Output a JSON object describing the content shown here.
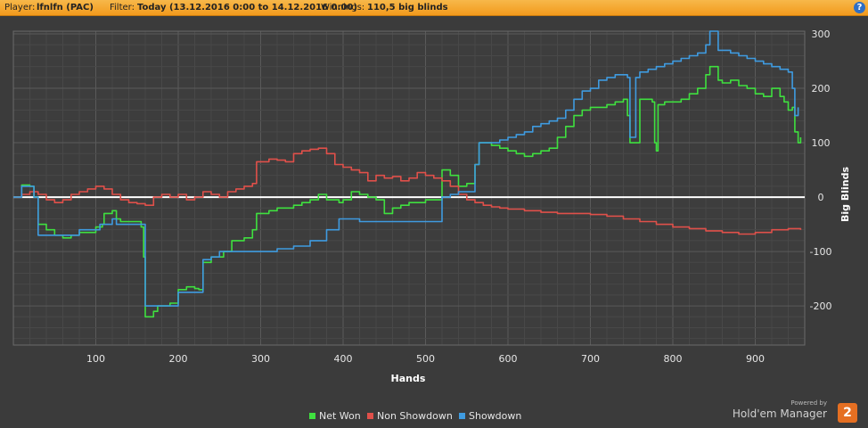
{
  "header": {
    "player_label": "Player:",
    "player_value": "lfnlfn (PAC)",
    "filter_label": "Filter:",
    "filter_value": "Today (13.12.2016 0:00 to 14.12.2016 0:00)",
    "winnings_label": "Winnings:",
    "winnings_value": "110,5 big blinds",
    "help_icon": "?"
  },
  "chart_data": {
    "type": "line",
    "xlabel": "Hands",
    "ylabel": "Big Blinds",
    "xlim": [
      0,
      960
    ],
    "ylim": [
      -272,
      305
    ],
    "xticks": [
      100,
      200,
      300,
      400,
      500,
      600,
      700,
      800,
      900
    ],
    "yticks": [
      -200,
      -100,
      0,
      100,
      200,
      300
    ],
    "grid": true,
    "legend_position": "bottom",
    "zero_line": true,
    "series": [
      {
        "name": "Net Won",
        "color": "#3fe03f",
        "points": [
          [
            0,
            0
          ],
          [
            8,
            0
          ],
          [
            10,
            22
          ],
          [
            20,
            20
          ],
          [
            25,
            0
          ],
          [
            30,
            -50
          ],
          [
            40,
            -60
          ],
          [
            50,
            -70
          ],
          [
            60,
            -75
          ],
          [
            70,
            -70
          ],
          [
            80,
            -65
          ],
          [
            90,
            -65
          ],
          [
            100,
            -55
          ],
          [
            108,
            -50
          ],
          [
            110,
            -30
          ],
          [
            120,
            -25
          ],
          [
            125,
            -40
          ],
          [
            130,
            -45
          ],
          [
            155,
            -55
          ],
          [
            158,
            -110
          ],
          [
            160,
            -220
          ],
          [
            170,
            -210
          ],
          [
            175,
            -200
          ],
          [
            190,
            -195
          ],
          [
            200,
            -170
          ],
          [
            210,
            -165
          ],
          [
            220,
            -168
          ],
          [
            225,
            -170
          ],
          [
            230,
            -120
          ],
          [
            240,
            -110
          ],
          [
            255,
            -100
          ],
          [
            265,
            -80
          ],
          [
            280,
            -75
          ],
          [
            290,
            -60
          ],
          [
            295,
            -30
          ],
          [
            310,
            -25
          ],
          [
            320,
            -20
          ],
          [
            340,
            -15
          ],
          [
            350,
            -10
          ],
          [
            360,
            -5
          ],
          [
            370,
            5
          ],
          [
            380,
            -5
          ],
          [
            395,
            -10
          ],
          [
            400,
            -5
          ],
          [
            410,
            10
          ],
          [
            420,
            5
          ],
          [
            430,
            0
          ],
          [
            440,
            -5
          ],
          [
            450,
            -30
          ],
          [
            460,
            -20
          ],
          [
            470,
            -15
          ],
          [
            480,
            -10
          ],
          [
            490,
            -10
          ],
          [
            500,
            -5
          ],
          [
            510,
            -5
          ],
          [
            520,
            50
          ],
          [
            530,
            40
          ],
          [
            540,
            20
          ],
          [
            550,
            25
          ],
          [
            560,
            60
          ],
          [
            565,
            100
          ],
          [
            580,
            95
          ],
          [
            590,
            90
          ],
          [
            600,
            85
          ],
          [
            610,
            80
          ],
          [
            620,
            75
          ],
          [
            630,
            80
          ],
          [
            640,
            85
          ],
          [
            650,
            90
          ],
          [
            660,
            110
          ],
          [
            670,
            130
          ],
          [
            680,
            150
          ],
          [
            690,
            160
          ],
          [
            700,
            165
          ],
          [
            720,
            170
          ],
          [
            730,
            175
          ],
          [
            740,
            180
          ],
          [
            745,
            150
          ],
          [
            748,
            100
          ],
          [
            760,
            180
          ],
          [
            770,
            180
          ],
          [
            775,
            175
          ],
          [
            778,
            100
          ],
          [
            780,
            85
          ],
          [
            782,
            170
          ],
          [
            790,
            175
          ],
          [
            800,
            175
          ],
          [
            810,
            180
          ],
          [
            820,
            190
          ],
          [
            830,
            200
          ],
          [
            840,
            225
          ],
          [
            845,
            240
          ],
          [
            855,
            215
          ],
          [
            860,
            210
          ],
          [
            870,
            215
          ],
          [
            880,
            205
          ],
          [
            890,
            200
          ],
          [
            900,
            190
          ],
          [
            910,
            185
          ],
          [
            920,
            200
          ],
          [
            930,
            185
          ],
          [
            935,
            175
          ],
          [
            940,
            160
          ],
          [
            945,
            165
          ],
          [
            948,
            120
          ],
          [
            952,
            100
          ],
          [
            955,
            110
          ]
        ]
      },
      {
        "name": "Non Showdown",
        "color": "#e0504a",
        "points": [
          [
            0,
            0
          ],
          [
            10,
            5
          ],
          [
            20,
            10
          ],
          [
            30,
            5
          ],
          [
            40,
            -5
          ],
          [
            50,
            -10
          ],
          [
            60,
            -5
          ],
          [
            70,
            5
          ],
          [
            80,
            10
          ],
          [
            90,
            15
          ],
          [
            100,
            20
          ],
          [
            110,
            15
          ],
          [
            120,
            5
          ],
          [
            130,
            -5
          ],
          [
            140,
            -10
          ],
          [
            150,
            -12
          ],
          [
            160,
            -15
          ],
          [
            170,
            0
          ],
          [
            180,
            5
          ],
          [
            190,
            0
          ],
          [
            200,
            5
          ],
          [
            210,
            -5
          ],
          [
            220,
            0
          ],
          [
            230,
            10
          ],
          [
            240,
            5
          ],
          [
            250,
            0
          ],
          [
            260,
            10
          ],
          [
            270,
            15
          ],
          [
            280,
            20
          ],
          [
            290,
            25
          ],
          [
            295,
            65
          ],
          [
            310,
            70
          ],
          [
            320,
            68
          ],
          [
            330,
            65
          ],
          [
            340,
            80
          ],
          [
            350,
            85
          ],
          [
            360,
            88
          ],
          [
            370,
            90
          ],
          [
            380,
            80
          ],
          [
            390,
            60
          ],
          [
            400,
            55
          ],
          [
            410,
            50
          ],
          [
            420,
            45
          ],
          [
            430,
            30
          ],
          [
            440,
            40
          ],
          [
            450,
            35
          ],
          [
            460,
            38
          ],
          [
            470,
            30
          ],
          [
            480,
            35
          ],
          [
            490,
            45
          ],
          [
            500,
            40
          ],
          [
            510,
            35
          ],
          [
            520,
            30
          ],
          [
            530,
            20
          ],
          [
            540,
            5
          ],
          [
            550,
            -5
          ],
          [
            560,
            -10
          ],
          [
            570,
            -15
          ],
          [
            580,
            -18
          ],
          [
            590,
            -20
          ],
          [
            600,
            -22
          ],
          [
            620,
            -25
          ],
          [
            640,
            -28
          ],
          [
            660,
            -30
          ],
          [
            680,
            -30
          ],
          [
            700,
            -32
          ],
          [
            720,
            -35
          ],
          [
            740,
            -40
          ],
          [
            760,
            -45
          ],
          [
            780,
            -50
          ],
          [
            800,
            -55
          ],
          [
            820,
            -58
          ],
          [
            840,
            -62
          ],
          [
            860,
            -65
          ],
          [
            880,
            -68
          ],
          [
            900,
            -65
          ],
          [
            920,
            -60
          ],
          [
            940,
            -58
          ],
          [
            955,
            -60
          ]
        ]
      },
      {
        "name": "Showdown",
        "color": "#3f9be0",
        "points": [
          [
            0,
            0
          ],
          [
            10,
            20
          ],
          [
            20,
            20
          ],
          [
            25,
            0
          ],
          [
            30,
            -70
          ],
          [
            70,
            -70
          ],
          [
            80,
            -60
          ],
          [
            100,
            -60
          ],
          [
            105,
            -50
          ],
          [
            120,
            -40
          ],
          [
            125,
            -50
          ],
          [
            155,
            -50
          ],
          [
            160,
            -200
          ],
          [
            190,
            -200
          ],
          [
            200,
            -175
          ],
          [
            225,
            -175
          ],
          [
            230,
            -115
          ],
          [
            240,
            -110
          ],
          [
            250,
            -100
          ],
          [
            300,
            -100
          ],
          [
            320,
            -95
          ],
          [
            340,
            -90
          ],
          [
            360,
            -80
          ],
          [
            380,
            -60
          ],
          [
            395,
            -40
          ],
          [
            420,
            -45
          ],
          [
            440,
            -45
          ],
          [
            460,
            -45
          ],
          [
            480,
            -45
          ],
          [
            500,
            -45
          ],
          [
            510,
            -45
          ],
          [
            520,
            0
          ],
          [
            530,
            5
          ],
          [
            540,
            10
          ],
          [
            560,
            60
          ],
          [
            565,
            100
          ],
          [
            580,
            100
          ],
          [
            590,
            105
          ],
          [
            600,
            110
          ],
          [
            610,
            115
          ],
          [
            620,
            120
          ],
          [
            630,
            130
          ],
          [
            640,
            135
          ],
          [
            650,
            140
          ],
          [
            660,
            145
          ],
          [
            670,
            160
          ],
          [
            680,
            180
          ],
          [
            690,
            195
          ],
          [
            700,
            200
          ],
          [
            710,
            215
          ],
          [
            720,
            220
          ],
          [
            730,
            225
          ],
          [
            740,
            225
          ],
          [
            745,
            220
          ],
          [
            748,
            110
          ],
          [
            755,
            220
          ],
          [
            760,
            230
          ],
          [
            770,
            235
          ],
          [
            780,
            240
          ],
          [
            790,
            245
          ],
          [
            800,
            250
          ],
          [
            810,
            255
          ],
          [
            820,
            260
          ],
          [
            830,
            265
          ],
          [
            840,
            280
          ],
          [
            845,
            305
          ],
          [
            855,
            270
          ],
          [
            860,
            270
          ],
          [
            870,
            265
          ],
          [
            880,
            260
          ],
          [
            890,
            255
          ],
          [
            900,
            250
          ],
          [
            910,
            245
          ],
          [
            920,
            240
          ],
          [
            930,
            235
          ],
          [
            940,
            230
          ],
          [
            945,
            200
          ],
          [
            948,
            150
          ],
          [
            952,
            165
          ]
        ]
      }
    ]
  },
  "legend": {
    "items": [
      {
        "label": "Net Won",
        "color": "#3fe03f"
      },
      {
        "label": "Non Showdown",
        "color": "#e0504a"
      },
      {
        "label": "Showdown",
        "color": "#3f9be0"
      }
    ]
  },
  "brand": {
    "powered_by": "Powered by",
    "name": "Hold'em Manager",
    "badge": "2"
  }
}
